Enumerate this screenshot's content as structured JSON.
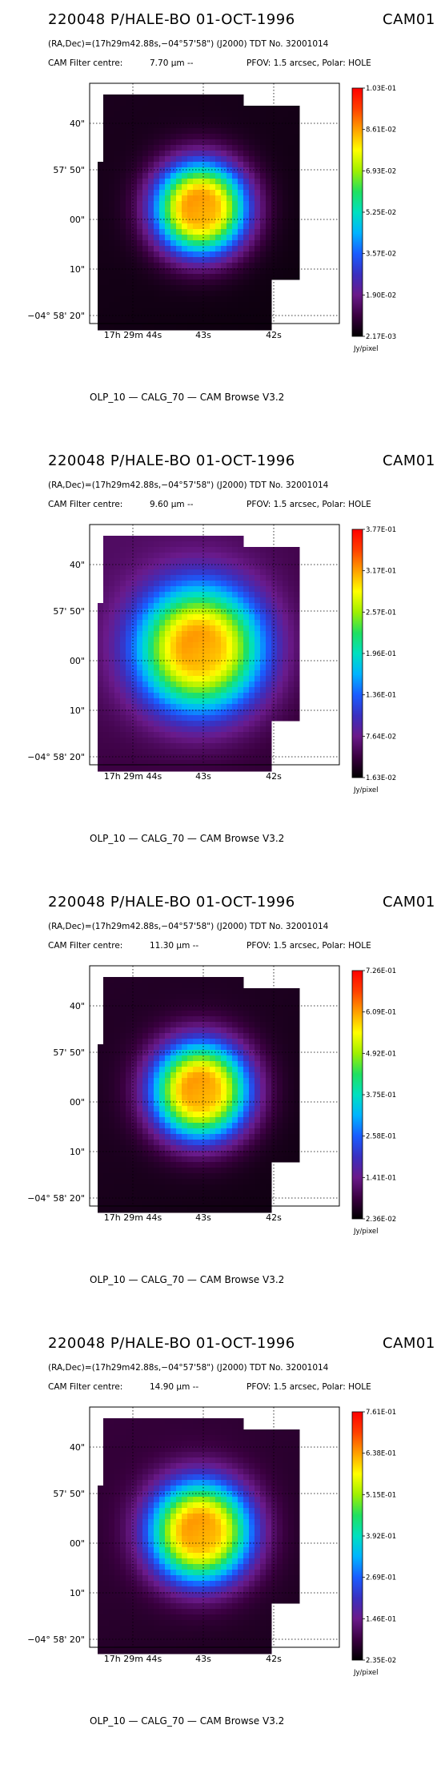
{
  "page": {
    "footer": "OLP_10    — CALG_70   — CAM Browse V3.2"
  },
  "header": {
    "title": "220048 P/HALE-BO 01-OCT-1996",
    "instrument": "CAM01",
    "coords_line": "(RA,Dec)=(17h29m42.88s,−04°57'58\") (J2000) TDT No. 32001014",
    "filter_line_prefix": "CAM  Filter  centre:",
    "pfov_line": "PFOV:  1.5 arcsec, Polar: HOLE"
  },
  "colorbar_label": "Jy/pixel",
  "axes": {
    "y_ticks": [
      "40\"",
      "57' 50\"",
      "00\"",
      "10\"",
      "−04° 58' 20\""
    ],
    "x_ticks": [
      "17h 29m 44s",
      "43s",
      "42s"
    ]
  },
  "colormap": [
    "#000000",
    "#3a0040",
    "#6a1a8a",
    "#3a30c0",
    "#1a5cff",
    "#00b4ff",
    "#00e0c0",
    "#20e060",
    "#a0f000",
    "#ffff00",
    "#ffa000",
    "#ff4000",
    "#ff0000"
  ],
  "chart_data": [
    {
      "type": "heatmap",
      "title": "220048 P/HALE-BO 01-OCT-1996",
      "filter_centre": "7.70 µm --",
      "filter_centre_um": 7.7,
      "colorbar_ticks": [
        "1.03E-01",
        "8.61E-02",
        "6.93E-02",
        "5.25E-02",
        "3.57E-02",
        "1.90E-02",
        "2.17E-03"
      ],
      "colorbar_range": [
        0.00217,
        0.103
      ],
      "units": "Jy/pixel",
      "peak": 0.103,
      "background": 0.006,
      "core_radius_px": 2.2,
      "sigma_px": 4.5
    },
    {
      "type": "heatmap",
      "title": "220048 P/HALE-BO 01-OCT-1996",
      "filter_centre": "9.60 µm --",
      "filter_centre_um": 9.6,
      "colorbar_ticks": [
        "3.77E-01",
        "3.17E-01",
        "2.57E-01",
        "1.96E-01",
        "1.36E-01",
        "7.64E-02",
        "1.63E-02"
      ],
      "colorbar_range": [
        0.0163,
        0.377
      ],
      "units": "Jy/pixel",
      "peak": 0.377,
      "background": 0.06,
      "core_radius_px": 2.5,
      "sigma_px": 6.5
    },
    {
      "type": "heatmap",
      "title": "220048 P/HALE-BO 01-OCT-1996",
      "filter_centre": "11.30 µm --",
      "filter_centre_um": 11.3,
      "colorbar_ticks": [
        "7.26E-01",
        "6.09E-01",
        "4.92E-01",
        "3.75E-01",
        "2.58E-01",
        "1.41E-01",
        "2.36E-02"
      ],
      "colorbar_range": [
        0.0236,
        0.726
      ],
      "units": "Jy/pixel",
      "peak": 0.726,
      "background": 0.06,
      "core_radius_px": 2.2,
      "sigma_px": 4.8
    },
    {
      "type": "heatmap",
      "title": "220048 P/HALE-BO 01-OCT-1996",
      "filter_centre": "14.90 µm --",
      "filter_centre_um": 14.9,
      "colorbar_ticks": [
        "7.61E-01",
        "6.38E-01",
        "5.15E-01",
        "3.92E-01",
        "2.69E-01",
        "1.46E-01",
        "2.35E-02"
      ],
      "colorbar_range": [
        0.0235,
        0.761
      ],
      "units": "Jy/pixel",
      "peak": 0.761,
      "background": 0.08,
      "core_radius_px": 2.3,
      "sigma_px": 5.0
    }
  ]
}
